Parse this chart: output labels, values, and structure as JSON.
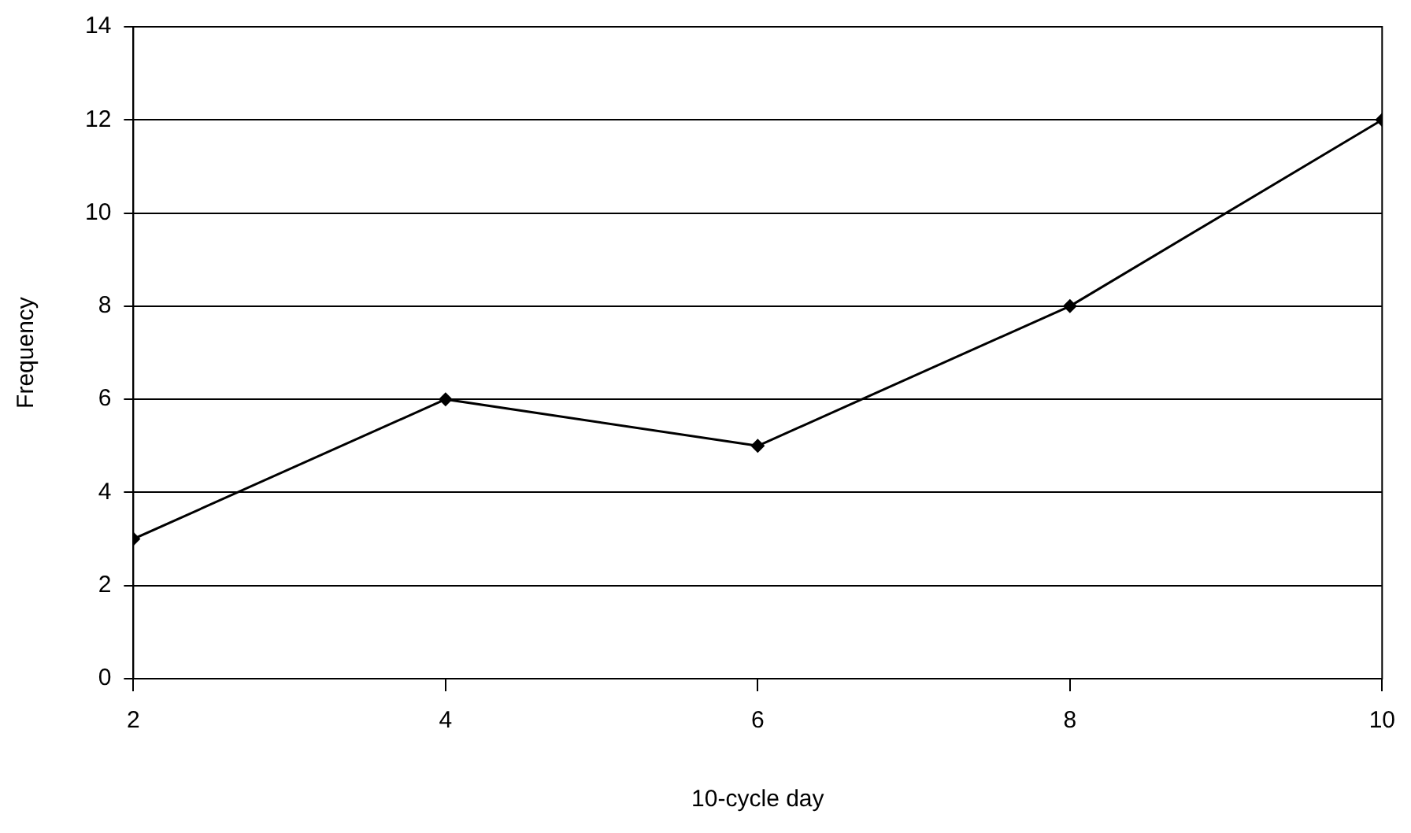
{
  "chart_data": {
    "type": "line",
    "xlabel": "10-cycle day",
    "ylabel": "Frequency",
    "x": [
      2,
      4,
      6,
      8,
      10
    ],
    "series": [
      {
        "color": "#000000",
        "values": [
          3,
          6,
          5,
          8,
          12
        ]
      }
    ],
    "xlim": [
      2,
      10
    ],
    "xticks": [
      2,
      4,
      6,
      8,
      10
    ],
    "ylim": [
      0,
      14
    ],
    "yticks": [
      0,
      2,
      4,
      6,
      8,
      10,
      12,
      14
    ],
    "grid": "y",
    "legend": false,
    "marker": "diamond",
    "line_style": "solid"
  }
}
